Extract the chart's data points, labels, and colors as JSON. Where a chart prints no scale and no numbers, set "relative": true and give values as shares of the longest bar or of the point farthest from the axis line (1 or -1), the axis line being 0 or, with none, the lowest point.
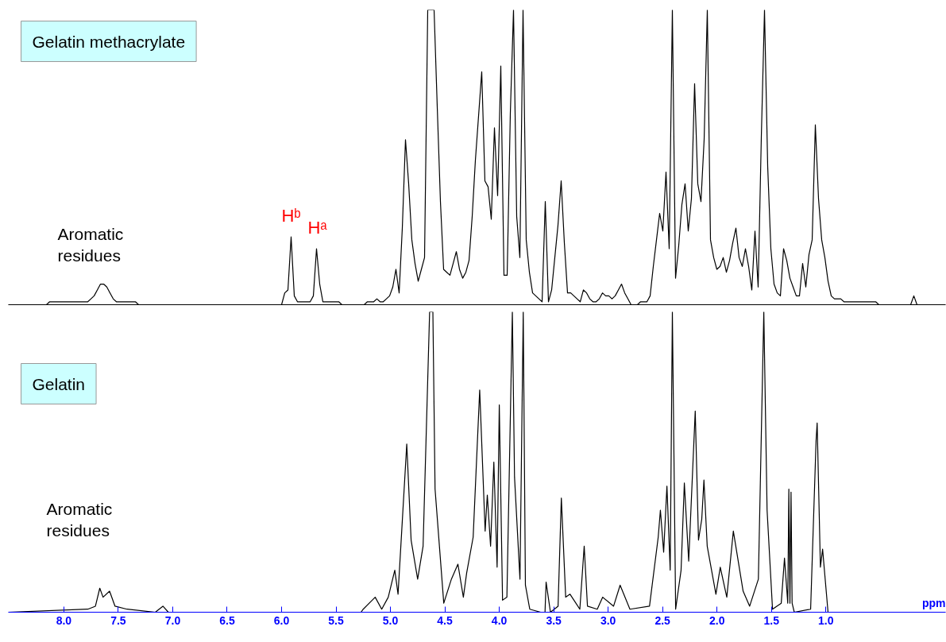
{
  "chart_data": [
    {
      "type": "line",
      "relative": true,
      "grid": false,
      "tick_labels": false,
      "title": "Gelatin methacrylate",
      "categories": [
        null,
        null,
        null,
        null,
        null,
        null,
        null,
        null,
        null,
        null,
        null,
        null,
        null,
        null,
        null,
        null,
        null,
        null,
        null,
        null,
        null,
        null,
        null,
        null,
        null,
        null,
        null,
        null,
        null,
        null,
        null,
        null,
        null,
        null,
        null,
        null,
        null,
        null,
        null,
        null,
        null,
        null,
        null,
        null,
        null,
        null,
        null,
        null,
        null,
        null,
        null,
        null,
        null,
        null,
        null,
        null,
        null,
        null,
        null,
        null,
        null,
        null,
        null,
        null,
        null,
        null,
        null,
        null,
        null,
        null,
        null,
        null,
        null,
        null,
        null,
        null,
        null,
        null,
        null,
        null,
        null,
        null,
        null,
        null,
        null,
        null,
        null,
        null,
        null,
        null,
        null,
        null,
        null,
        null,
        null,
        null,
        null,
        null,
        null,
        null,
        null,
        null,
        null,
        null,
        null,
        null,
        null,
        null,
        null,
        null,
        null,
        null,
        null,
        null,
        null,
        null,
        null,
        null,
        null,
        null,
        null,
        null,
        null,
        null,
        null,
        null,
        null,
        null,
        null,
        null,
        null,
        null,
        null,
        null,
        null,
        null,
        null,
        null,
        null,
        null,
        null,
        null,
        null,
        null,
        null,
        null,
        null,
        null,
        null,
        null,
        null,
        null,
        null,
        null,
        null,
        null,
        null,
        null,
        null,
        null,
        null,
        null,
        null,
        null,
        null,
        null,
        null,
        null,
        null,
        null,
        null,
        null,
        null,
        null,
        null,
        null,
        null,
        null,
        null,
        null,
        null,
        null,
        null,
        null,
        null,
        null,
        null,
        null,
        null,
        null,
        null,
        null,
        null,
        null,
        null,
        null,
        null,
        null,
        null,
        null,
        null,
        null,
        null,
        null,
        null,
        null,
        null,
        null,
        null,
        null,
        null,
        null,
        null,
        null,
        null,
        null,
        null,
        null,
        null,
        null,
        null,
        null,
        null,
        null,
        null,
        null,
        null,
        null,
        null,
        null,
        null,
        null,
        null,
        null,
        null,
        null,
        null,
        null,
        null,
        null,
        null,
        null,
        null,
        null,
        null,
        null,
        null,
        null,
        null,
        null,
        null,
        null,
        null,
        null,
        null,
        null,
        null,
        null,
        null,
        null,
        null,
        null,
        null,
        null,
        null,
        null,
        null,
        null,
        null,
        null,
        null,
        null,
        null,
        null,
        null,
        null,
        null,
        null,
        null,
        null,
        null,
        null,
        null,
        null,
        null,
        null,
        null,
        null,
        null,
        null,
        null,
        null,
        null,
        null,
        null,
        null
      ],
      "annotations": [
        "Aromatic residues",
        {
          "text": "Hᵇ",
          "y": 0.23
        },
        {
          "text": "Hᵃ",
          "y": 0.19
        }
      ],
      "series": [
        {
          "color": "#000000",
          "values": [
            0,
            0,
            0,
            0,
            0,
            0,
            0,
            0,
            0,
            0,
            0,
            0,
            0,
            0.01,
            0.01,
            0.01,
            0.01,
            0.01,
            0.01,
            0.01,
            0.01,
            0.01,
            0.01,
            0.01,
            0.01,
            0.01,
            0.02,
            0.03,
            0.05,
            0.07,
            0.07,
            0.06,
            0.04,
            0.02,
            0.01,
            0.01,
            0.01,
            0.01,
            0.01,
            0.01,
            0.01,
            0,
            0,
            0,
            0,
            0,
            0,
            0,
            0,
            0,
            0,
            0,
            0,
            0,
            0,
            0,
            0,
            0,
            0,
            0,
            0,
            0,
            0,
            0,
            0,
            0,
            0,
            0,
            0,
            0,
            0,
            0,
            0,
            0,
            0,
            0,
            0,
            0,
            0,
            0,
            0,
            0,
            0,
            0,
            0,
            0,
            0,
            0.04,
            0.05,
            0.23,
            0.03,
            0.01,
            0.01,
            0.01,
            0.01,
            0.01,
            0.03,
            0.19,
            0.07,
            0.01,
            0.01,
            0.01,
            0.01,
            0.01,
            0.01,
            0,
            0,
            0,
            0,
            0,
            0,
            0,
            0,
            0.01,
            0.01,
            0.01,
            0.02,
            0.01,
            0.01,
            0.02,
            0.03,
            0.06,
            0.12,
            0.04,
            0.26,
            0.56,
            0.41,
            0.22,
            0.14,
            0.08,
            0.12,
            0.16,
            1,
            1,
            1,
            0.67,
            0.35,
            0.12,
            0.11,
            0.1,
            0.14,
            0.18,
            0.12,
            0.09,
            0.11,
            0.15,
            0.3,
            0.49,
            0.64,
            0.79,
            0.42,
            0.4,
            0.29,
            0.6,
            0.37,
            0.81,
            0.1,
            0.1,
            0.65,
            1,
            0.3,
            0.16,
            1,
            0.22,
            0.11,
            0.04,
            0.03,
            0.02,
            0.01,
            0.35,
            0.01,
            0.05,
            0.16,
            0.27,
            0.42,
            0.21,
            0.04,
            0.04,
            0.03,
            0.02,
            0.01,
            0.05,
            0.04,
            0.02,
            0.01,
            0.01,
            0.02,
            0.04,
            0.03,
            0.03,
            0.02,
            0.03,
            0.05,
            0.07,
            0.04,
            0.02,
            0,
            0,
            0,
            0.01,
            0.01,
            0.01,
            0.03,
            0.13,
            0.22,
            0.31,
            0.25,
            0.45,
            0.19,
            1,
            0.09,
            0.2,
            0.34,
            0.41,
            0.25,
            0.36,
            0.75,
            0.41,
            0.35,
            0.56,
            1,
            0.22,
            0.16,
            0.12,
            0.13,
            0.16,
            0.11,
            0.15,
            0.21,
            0.26,
            0.16,
            0.13,
            0.19,
            0.13,
            0.05,
            0.25,
            0.06,
            0.57,
            1,
            0.47,
            0.19,
            0.07,
            0.04,
            0.03,
            0.19,
            0.15,
            0.09,
            0.06,
            0.03,
            0.03,
            0.14,
            0.06,
            0.17,
            0.22,
            0.61,
            0.36,
            0.22,
            0.16,
            0.08,
            0.03,
            0.02,
            0.02,
            0.02,
            0.01,
            0.01,
            0.01,
            0.01,
            0.01,
            0.01,
            0.01,
            0.01,
            0.01,
            0.01,
            0.01,
            0,
            0,
            0,
            0,
            0,
            0,
            0,
            0,
            0,
            0,
            0,
            0.03,
            0,
            0,
            0,
            0,
            0,
            0,
            0,
            0,
            0,
            0
          ]
        }
      ]
    },
    {
      "type": "line",
      "relative": true,
      "grid": false,
      "tick_labels": "x",
      "title": "Gelatin",
      "xlabel": "ppm",
      "xlim": [
        8.51,
        -0.1
      ],
      "xticks": [
        {
          "value": 8.0,
          "label": "8.0"
        },
        {
          "value": 7.5,
          "label": "7.5"
        },
        {
          "value": 7.0,
          "label": "7.0"
        },
        {
          "value": 6.5,
          "label": "6.5"
        },
        {
          "value": 6.0,
          "label": "6.0"
        },
        {
          "value": 5.5,
          "label": "5.5"
        },
        {
          "value": 5.0,
          "label": "5.0"
        },
        {
          "value": 4.5,
          "label": "4.5"
        },
        {
          "value": 4.0,
          "label": "4.0"
        },
        {
          "value": 3.5,
          "label": "3.5"
        },
        {
          "value": 3.0,
          "label": "3.0"
        },
        {
          "value": 2.5,
          "label": "2.5"
        },
        {
          "value": 2.0,
          "label": "2.0"
        },
        {
          "value": 1.5,
          "label": "1.5"
        },
        {
          "value": 1.0,
          "label": "1.0"
        }
      ],
      "annotations": [
        "Aromatic residues"
      ],
      "series": [
        {
          "color": "#000000",
          "x": [
            8.51,
            7.78,
            7.71,
            7.67,
            7.64,
            7.58,
            7.53,
            7.42,
            7.16,
            7.09,
            7.04,
            6.4,
            5.27,
            5.25,
            5.14,
            5.08,
            5.02,
            4.96,
            4.93,
            4.85,
            4.81,
            4.75,
            4.7,
            4.64,
            4.61,
            4.59,
            4.51,
            4.44,
            4.38,
            4.33,
            4.3,
            4.24,
            4.18,
            4.13,
            4.11,
            4.08,
            4.05,
            4.02,
            4.0,
            3.97,
            3.93,
            3.88,
            3.86,
            3.81,
            3.78,
            3.76,
            3.72,
            3.62,
            3.58,
            3.57,
            3.53,
            3.46,
            3.43,
            3.39,
            3.35,
            3.26,
            3.22,
            3.19,
            3.1,
            3.05,
            2.95,
            2.89,
            2.8,
            2.62,
            2.54,
            2.52,
            2.49,
            2.46,
            2.43,
            2.41,
            2.38,
            2.33,
            2.3,
            2.26,
            2.2,
            2.17,
            2.14,
            2.12,
            2.09,
            2.01,
            1.97,
            1.91,
            1.85,
            1.76,
            1.7,
            1.62,
            1.57,
            1.54,
            1.49,
            1.41,
            1.38,
            1.35,
            1.34,
            1.33,
            1.32,
            1.31,
            1.29,
            1.14,
            1.09,
            1.08,
            1.05,
            1.03,
            0.98,
            -0.1
          ],
          "values": [
            0,
            0.01,
            0.02,
            0.08,
            0.05,
            0.07,
            0.02,
            0.01,
            0,
            0.02,
            0,
            0,
            0,
            0.01,
            0.05,
            0.01,
            0.05,
            0.14,
            0.06,
            0.56,
            0.24,
            0.11,
            0.22,
            1.0,
            1.0,
            0.41,
            0.03,
            0.11,
            0.16,
            0.05,
            0.13,
            0.25,
            0.74,
            0.27,
            0.39,
            0.22,
            0.5,
            0.15,
            0.69,
            0.04,
            0.05,
            1.0,
            0.45,
            0.11,
            1.0,
            0.09,
            0.01,
            0,
            0,
            0.1,
            0,
            0.02,
            0.38,
            0.05,
            0.06,
            0.01,
            0.22,
            0.02,
            0.01,
            0.05,
            0.02,
            0.09,
            0.01,
            0.02,
            0.25,
            0.34,
            0.2,
            0.42,
            0.14,
            1.0,
            0.01,
            0.14,
            0.43,
            0.17,
            0.67,
            0.24,
            0.31,
            0.44,
            0.22,
            0.06,
            0.15,
            0.05,
            0.27,
            0.07,
            0.02,
            0.11,
            1.0,
            0.34,
            0.01,
            0.03,
            0.18,
            0.03,
            0.41,
            0.03,
            0.4,
            0.03,
            0,
            0.01,
            0.57,
            0.63,
            0.15,
            0.21,
            0,
            0
          ]
        }
      ]
    }
  ]
}
